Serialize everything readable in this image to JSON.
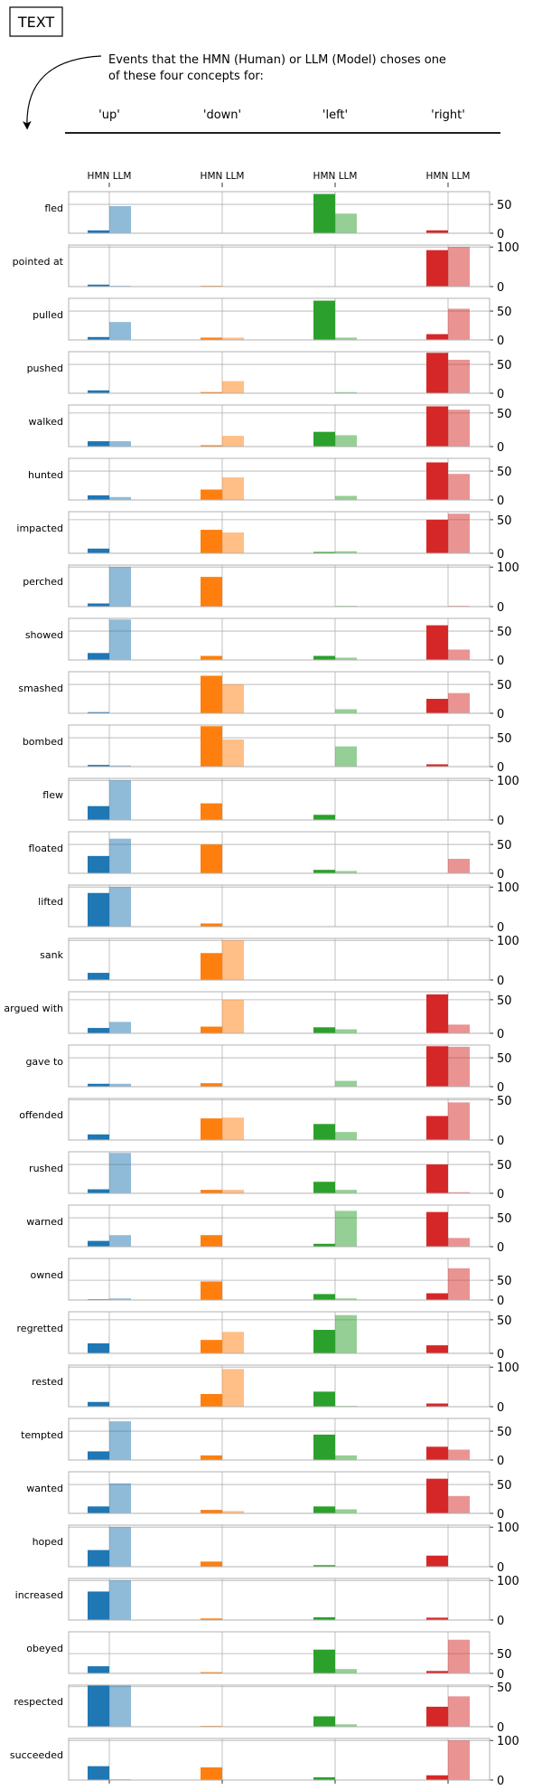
{
  "tag_box": "TEXT",
  "annotation": "Events that the HMN (Human) or LLM (Model) choses one of these four concepts for:",
  "concepts": [
    "'up'",
    "'down'",
    "'left'",
    "'right'"
  ],
  "column_header": "HMN LLM",
  "colors": {
    "up": "#1f77b4",
    "down": "#ff7f0e",
    "left": "#2ca02c",
    "right": "#d62728",
    "grid": "#b0b0b0",
    "frame": "#b0b0b0"
  },
  "chart_data": {
    "type": "bar",
    "title": "",
    "categories": [
      "Up",
      "Down",
      "Left",
      "Right"
    ],
    "series": [
      {
        "name": "HMN",
        "style": "solid"
      },
      {
        "name": "LLM",
        "style": "light"
      }
    ],
    "grid": true,
    "rows": [
      {
        "label": "fled",
        "ymax": 72,
        "ticks": [
          0,
          50
        ],
        "hmn": [
          5,
          0,
          68,
          5
        ],
        "llm": [
          47,
          0,
          34,
          0
        ]
      },
      {
        "label": "pointed at",
        "ymax": 105,
        "ticks": [
          0,
          100
        ],
        "hmn": [
          5,
          2,
          0,
          92
        ],
        "llm": [
          2,
          0,
          0,
          100
        ]
      },
      {
        "label": "pulled",
        "ymax": 72,
        "ticks": [
          0,
          50
        ],
        "hmn": [
          5,
          4,
          68,
          10
        ],
        "llm": [
          31,
          4,
          4,
          54
        ]
      },
      {
        "label": "pushed",
        "ymax": 72,
        "ticks": [
          0,
          50
        ],
        "hmn": [
          5,
          2,
          0,
          70
        ],
        "llm": [
          0,
          21,
          2,
          58
        ]
      },
      {
        "label": "walked",
        "ymax": 62,
        "ticks": [
          0,
          50
        ],
        "hmn": [
          8,
          2,
          22,
          60
        ],
        "llm": [
          8,
          16,
          17,
          55
        ]
      },
      {
        "label": "hunted",
        "ymax": 72,
        "ticks": [
          0,
          50
        ],
        "hmn": [
          8,
          18,
          0,
          65
        ],
        "llm": [
          5,
          39,
          7,
          45
        ]
      },
      {
        "label": "impacted",
        "ymax": 62,
        "ticks": [
          0,
          50
        ],
        "hmn": [
          7,
          35,
          2,
          50
        ],
        "llm": [
          0,
          31,
          3,
          59
        ]
      },
      {
        "label": "perched",
        "ymax": 105,
        "ticks": [
          0,
          100
        ],
        "hmn": [
          8,
          75,
          0,
          0
        ],
        "llm": [
          100,
          0,
          2,
          2
        ]
      },
      {
        "label": "showed",
        "ymax": 72,
        "ticks": [
          0,
          50
        ],
        "hmn": [
          12,
          7,
          7,
          60
        ],
        "llm": [
          70,
          0,
          4,
          18
        ]
      },
      {
        "label": "smashed",
        "ymax": 72,
        "ticks": [
          0,
          50
        ],
        "hmn": [
          2,
          65,
          0,
          25
        ],
        "llm": [
          0,
          50,
          7,
          35
        ]
      },
      {
        "label": "bombed",
        "ymax": 72,
        "ticks": [
          0,
          50
        ],
        "hmn": [
          3,
          70,
          0,
          4
        ],
        "llm": [
          2,
          47,
          35,
          0
        ]
      },
      {
        "label": "flew",
        "ymax": 105,
        "ticks": [
          0,
          100
        ],
        "hmn": [
          35,
          42,
          13,
          0
        ],
        "llm": [
          100,
          0,
          0,
          0
        ]
      },
      {
        "label": "floated",
        "ymax": 72,
        "ticks": [
          0,
          50
        ],
        "hmn": [
          30,
          50,
          6,
          0
        ],
        "llm": [
          60,
          0,
          4,
          25
        ]
      },
      {
        "label": "lifted",
        "ymax": 105,
        "ticks": [
          0,
          100
        ],
        "hmn": [
          85,
          8,
          0,
          0
        ],
        "llm": [
          100,
          0,
          0,
          0
        ]
      },
      {
        "label": "sank",
        "ymax": 105,
        "ticks": [
          0,
          100
        ],
        "hmn": [
          18,
          68,
          0,
          0
        ],
        "llm": [
          0,
          100,
          0,
          0
        ]
      },
      {
        "label": "argued with",
        "ymax": 62,
        "ticks": [
          0,
          50
        ],
        "hmn": [
          8,
          10,
          9,
          58
        ],
        "llm": [
          17,
          50,
          6,
          13
        ]
      },
      {
        "label": "gave to",
        "ymax": 72,
        "ticks": [
          0,
          50
        ],
        "hmn": [
          5,
          6,
          0,
          70
        ],
        "llm": [
          5,
          0,
          10,
          69
        ]
      },
      {
        "label": "offended",
        "ymax": 52,
        "ticks": [
          0,
          50
        ],
        "hmn": [
          7,
          27,
          20,
          30
        ],
        "llm": [
          0,
          28,
          10,
          47
        ]
      },
      {
        "label": "rushed",
        "ymax": 72,
        "ticks": [
          0,
          50
        ],
        "hmn": [
          7,
          6,
          20,
          50
        ],
        "llm": [
          70,
          6,
          6,
          2
        ]
      },
      {
        "label": "warned",
        "ymax": 72,
        "ticks": [
          0,
          50
        ],
        "hmn": [
          10,
          20,
          5,
          60
        ],
        "llm": [
          20,
          0,
          62,
          15
        ]
      },
      {
        "label": "owned",
        "ymax": 105,
        "ticks": [
          0,
          50
        ],
        "hmn": [
          2,
          47,
          15,
          17
        ],
        "llm": [
          4,
          0,
          4,
          80
        ]
      },
      {
        "label": "regretted",
        "ymax": 62,
        "ticks": [
          0,
          50
        ],
        "hmn": [
          15,
          20,
          35,
          12
        ],
        "llm": [
          0,
          32,
          57,
          0
        ]
      },
      {
        "label": "rested",
        "ymax": 105,
        "ticks": [
          0,
          100
        ],
        "hmn": [
          12,
          32,
          38,
          8
        ],
        "llm": [
          0,
          95,
          2,
          0
        ]
      },
      {
        "label": "tempted",
        "ymax": 72,
        "ticks": [
          0,
          50
        ],
        "hmn": [
          15,
          8,
          44,
          23
        ],
        "llm": [
          67,
          0,
          8,
          18
        ]
      },
      {
        "label": "wanted",
        "ymax": 72,
        "ticks": [
          0,
          50
        ],
        "hmn": [
          12,
          6,
          12,
          60
        ],
        "llm": [
          52,
          4,
          7,
          30
        ]
      },
      {
        "label": "hoped",
        "ymax": 105,
        "ticks": [
          0,
          100
        ],
        "hmn": [
          42,
          13,
          4,
          28
        ],
        "llm": [
          100,
          0,
          0,
          0
        ]
      },
      {
        "label": "increased",
        "ymax": 105,
        "ticks": [
          0,
          100
        ],
        "hmn": [
          72,
          4,
          7,
          6
        ],
        "llm": [
          100,
          0,
          0,
          0
        ]
      },
      {
        "label": "obeyed",
        "ymax": 105,
        "ticks": [
          0,
          50
        ],
        "hmn": [
          18,
          3,
          60,
          6
        ],
        "llm": [
          0,
          0,
          11,
          85
        ]
      },
      {
        "label": "respected",
        "ymax": 52,
        "ticks": [
          0,
          50
        ],
        "hmn": [
          52,
          1,
          13,
          25
        ],
        "llm": [
          52,
          0,
          3,
          38
        ]
      },
      {
        "label": "succeeded",
        "ymax": 105,
        "ticks": [
          0,
          100
        ],
        "hmn": [
          35,
          32,
          7,
          12
        ],
        "llm": [
          2,
          0,
          0,
          100
        ]
      }
    ]
  }
}
